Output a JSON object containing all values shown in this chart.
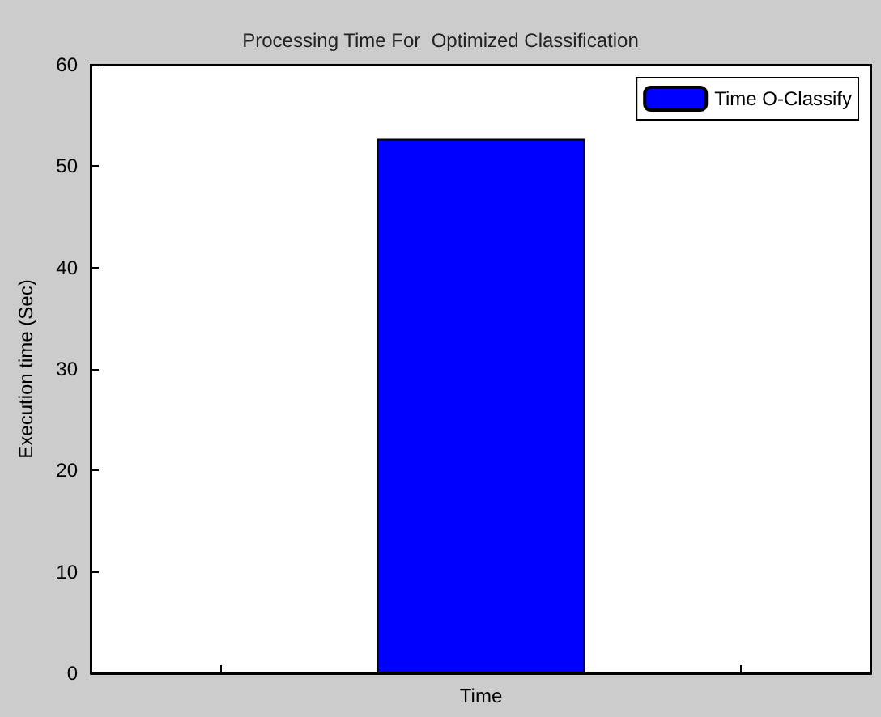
{
  "chart_data": {
    "type": "bar",
    "title": "Processing Time For  Optimized Classification",
    "ylabel": "Execution time (Sec)",
    "categories": [
      null,
      "Time",
      null
    ],
    "series": [
      {
        "name": "Time O-Classify",
        "color": "#0000ff",
        "values": [
          null,
          52.7,
          null
        ]
      }
    ],
    "ylim": [
      0,
      60
    ],
    "yticks": [
      0,
      10,
      20,
      30,
      40,
      50,
      60
    ],
    "grid": false,
    "legend": "top right"
  }
}
